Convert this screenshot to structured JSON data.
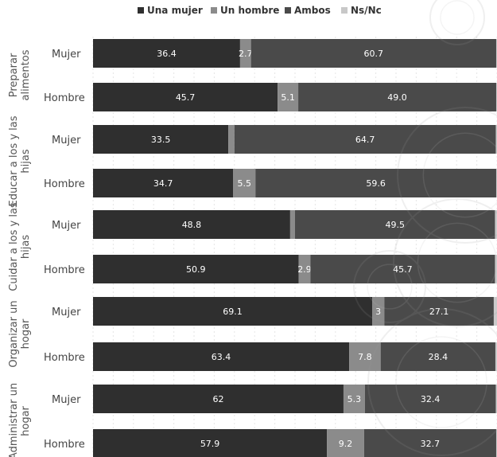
{
  "chart_data": {
    "type": "bar",
    "orientation": "horizontal",
    "stacked": true,
    "legend_position": "top",
    "grid": true,
    "xlim": [
      0,
      100
    ],
    "colors": {
      "Una mujer": "#2f2f2f",
      "Un hombre": "#8b8b8b",
      "Ambos": "#4a4a4a",
      "Ns/Nc": "#c8c8c8"
    },
    "groups": [
      {
        "label": "Preparar alimentos",
        "label_lines": [
          "Preparar",
          "alimentos"
        ],
        "rows": [
          {
            "label": "Mujer",
            "values": [
              36.4,
              2.7,
              60.7,
              0.3
            ],
            "value_labels": [
              "36.4",
              "2.7",
              "60.7",
              "0.3"
            ]
          },
          {
            "label": "Hombre",
            "values": [
              45.7,
              5.1,
              49.0,
              0.3
            ],
            "value_labels": [
              "45.7",
              "5.1",
              "49.0",
              "0.3"
            ]
          }
        ]
      },
      {
        "label": "Educar a los y las hijas",
        "label_lines": [
          "Educar a los y las",
          "hijas"
        ],
        "rows": [
          {
            "label": "Mujer",
            "values": [
              33.5,
              1.5,
              64.7,
              0.3
            ],
            "value_labels": [
              "33.5",
              "1.5",
              "64.7",
              "0.3"
            ]
          },
          {
            "label": "Hombre",
            "values": [
              34.7,
              5.5,
              59.6,
              0.2
            ],
            "value_labels": [
              "34.7",
              "5.5",
              "59.6",
              "0.2"
            ]
          }
        ]
      },
      {
        "label": "Cuidar a los y las hijas",
        "label_lines": [
          "Cuidar a los y las",
          "hijas"
        ],
        "rows": [
          {
            "label": "Mujer",
            "values": [
              48.8,
              1.2,
              49.5,
              0.5
            ],
            "value_labels": [
              "48.8",
              "1.2",
              "49.5",
              "0.5"
            ]
          },
          {
            "label": "Hombre",
            "values": [
              50.9,
              2.9,
              45.7,
              0.5
            ],
            "value_labels": [
              "50.9",
              "2.9",
              "45.7",
              "0.5"
            ]
          }
        ]
      },
      {
        "label": "Organizar un hogar",
        "label_lines": [
          "Organizar un",
          "hogar"
        ],
        "rows": [
          {
            "label": "Mujer",
            "values": [
              69.1,
              3.0,
              27.1,
              0.8
            ],
            "value_labels": [
              "69.1",
              "3",
              "27.1",
              "0.8"
            ]
          },
          {
            "label": "Hombre",
            "values": [
              63.4,
              7.8,
              28.4,
              0.4
            ],
            "value_labels": [
              "63.4",
              "7.8",
              "28.4",
              "0.4"
            ]
          }
        ]
      },
      {
        "label": "Administrar un hogar",
        "label_lines": [
          "Administrar un",
          "hogar"
        ],
        "rows": [
          {
            "label": "Mujer",
            "values": [
              62.0,
              5.3,
              32.4,
              0.3
            ],
            "value_labels": [
              "62",
              "5.3",
              "32.4",
              "0.3"
            ]
          },
          {
            "label": "Hombre",
            "values": [
              57.9,
              9.2,
              32.7,
              0.2
            ],
            "value_labels": [
              "57.9",
              "9.2",
              "32.7",
              "0.2"
            ]
          }
        ]
      }
    ],
    "series": [
      {
        "name": "Una mujer"
      },
      {
        "name": "Un hombre"
      },
      {
        "name": "Ambos"
      },
      {
        "name": "Ns/Nc"
      }
    ]
  }
}
